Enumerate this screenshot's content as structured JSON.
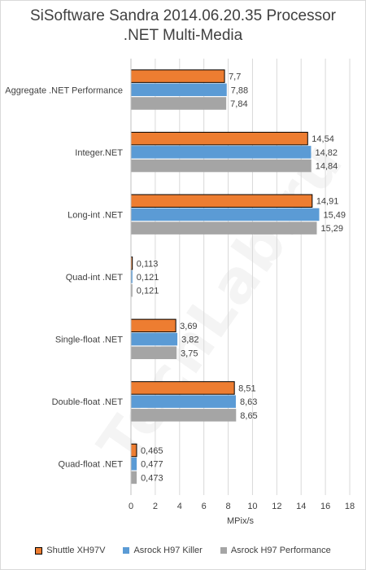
{
  "chart_data": {
    "type": "bar",
    "orientation": "horizontal",
    "title_line1": "SiSoftware Sandra 2014.06.20.35 Processor",
    "title_line2": ".NET Multi-Media",
    "categories": [
      "Aggregate .NET Performance",
      "Integer.NET",
      "Long-int .NET",
      "Quad-int .NET",
      "Single-float .NET",
      "Double-float .NET",
      "Quad-float .NET"
    ],
    "series": [
      {
        "name": "Shuttle XH97V",
        "color": "#ed7d31",
        "values": [
          7.7,
          14.54,
          14.91,
          0.113,
          3.69,
          8.51,
          0.465
        ],
        "labels": [
          "7,7",
          "14,54",
          "14,91",
          "0,113",
          "3,69",
          "8,51",
          "0,465"
        ]
      },
      {
        "name": "Asrock H97 Killer",
        "color": "#5b9bd5",
        "values": [
          7.88,
          14.82,
          15.49,
          0.121,
          3.82,
          8.63,
          0.477
        ],
        "labels": [
          "7,88",
          "14,82",
          "15,49",
          "0,121",
          "3,82",
          "8,63",
          "0,477"
        ]
      },
      {
        "name": "Asrock H97 Performance",
        "color": "#a5a5a5",
        "values": [
          7.84,
          14.84,
          15.29,
          0.121,
          3.75,
          8.65,
          0.473
        ],
        "labels": [
          "7,84",
          "14,84",
          "15,29",
          "0,121",
          "3,75",
          "8,65",
          "0,473"
        ]
      }
    ],
    "xlabel": "MPix/s",
    "xlim": [
      0,
      18
    ],
    "xticks": [
      0,
      2,
      4,
      6,
      8,
      10,
      12,
      14,
      16,
      18
    ],
    "grid": true,
    "legend_position": "bottom"
  },
  "watermark": "TechLab.ru"
}
